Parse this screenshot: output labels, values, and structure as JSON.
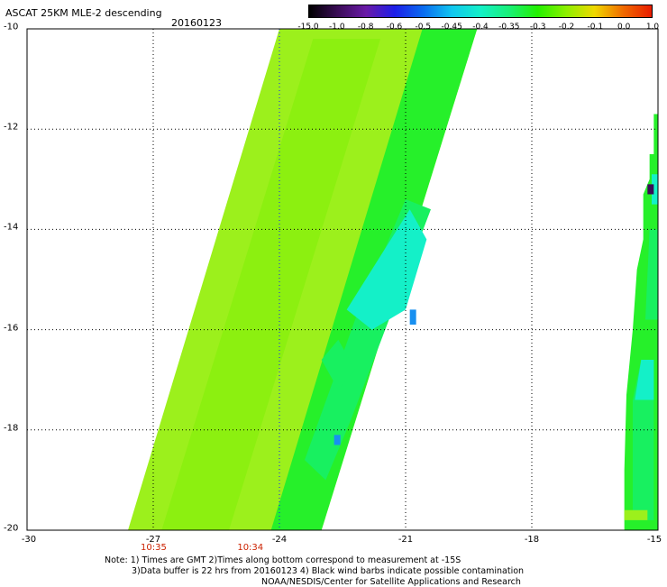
{
  "header": {
    "title": "ASCAT 25KM MLE-2 descending",
    "date": "20160123"
  },
  "colorbar": {
    "labels": [
      "-15.0",
      "-1.0",
      "-0.8",
      "-0.6",
      "-0.5",
      "-0.45",
      "-0.4",
      "-0.35",
      "-0.3",
      "-0.2",
      "-0.1",
      "0.0",
      "1.0"
    ],
    "colors": [
      "#000000",
      "#3a0c56",
      "#6a1aa8",
      "#1d1ee8",
      "#0a6cf0",
      "#11c6f0",
      "#14f0c8",
      "#18f078",
      "#22f000",
      "#8cf000",
      "#f0d800",
      "#f06a00",
      "#e81c00"
    ]
  },
  "axes": {
    "lat_labels": [
      "-10",
      "-12",
      "-14",
      "-16",
      "-18",
      "-20"
    ],
    "lon_labels": [
      "-30",
      "-27",
      "-24",
      "-21",
      "-18",
      "-15"
    ],
    "lat_range": [
      -20,
      -10
    ],
    "lon_range": [
      -30,
      -15
    ],
    "grid": true
  },
  "times": [
    {
      "text": "10:35",
      "lon": -27
    },
    {
      "text": "10:34",
      "lon": -24.7
    }
  ],
  "notes": {
    "line1": "Note: 1) Times are GMT 2)Times along bottom correspond to measurement at -15S",
    "line2": "3)Data buffer is 22 hrs from 20160123 4) Black wind barbs indicate possible contamination",
    "line3": "NOAA/NESDIS/Center for Satellite Applications and Research"
  },
  "swaths": {
    "colors": {
      "main": "#9cf01c",
      "alt": "#8cf010",
      "green": "#26f02a",
      "mid": "#18f060",
      "cyan": "#14f0c8",
      "blue": "#1890f0",
      "purple": "#3a0c56"
    },
    "left_swath_corners": [
      [
        -27.6,
        -20
      ],
      [
        -23.0,
        -20
      ],
      [
        -19.3,
        -10
      ],
      [
        -24.0,
        -10
      ]
    ],
    "right_swath_corners": [
      [
        -15.8,
        -20
      ],
      [
        -15,
        -20
      ],
      [
        -15,
        -11.7
      ]
    ]
  }
}
